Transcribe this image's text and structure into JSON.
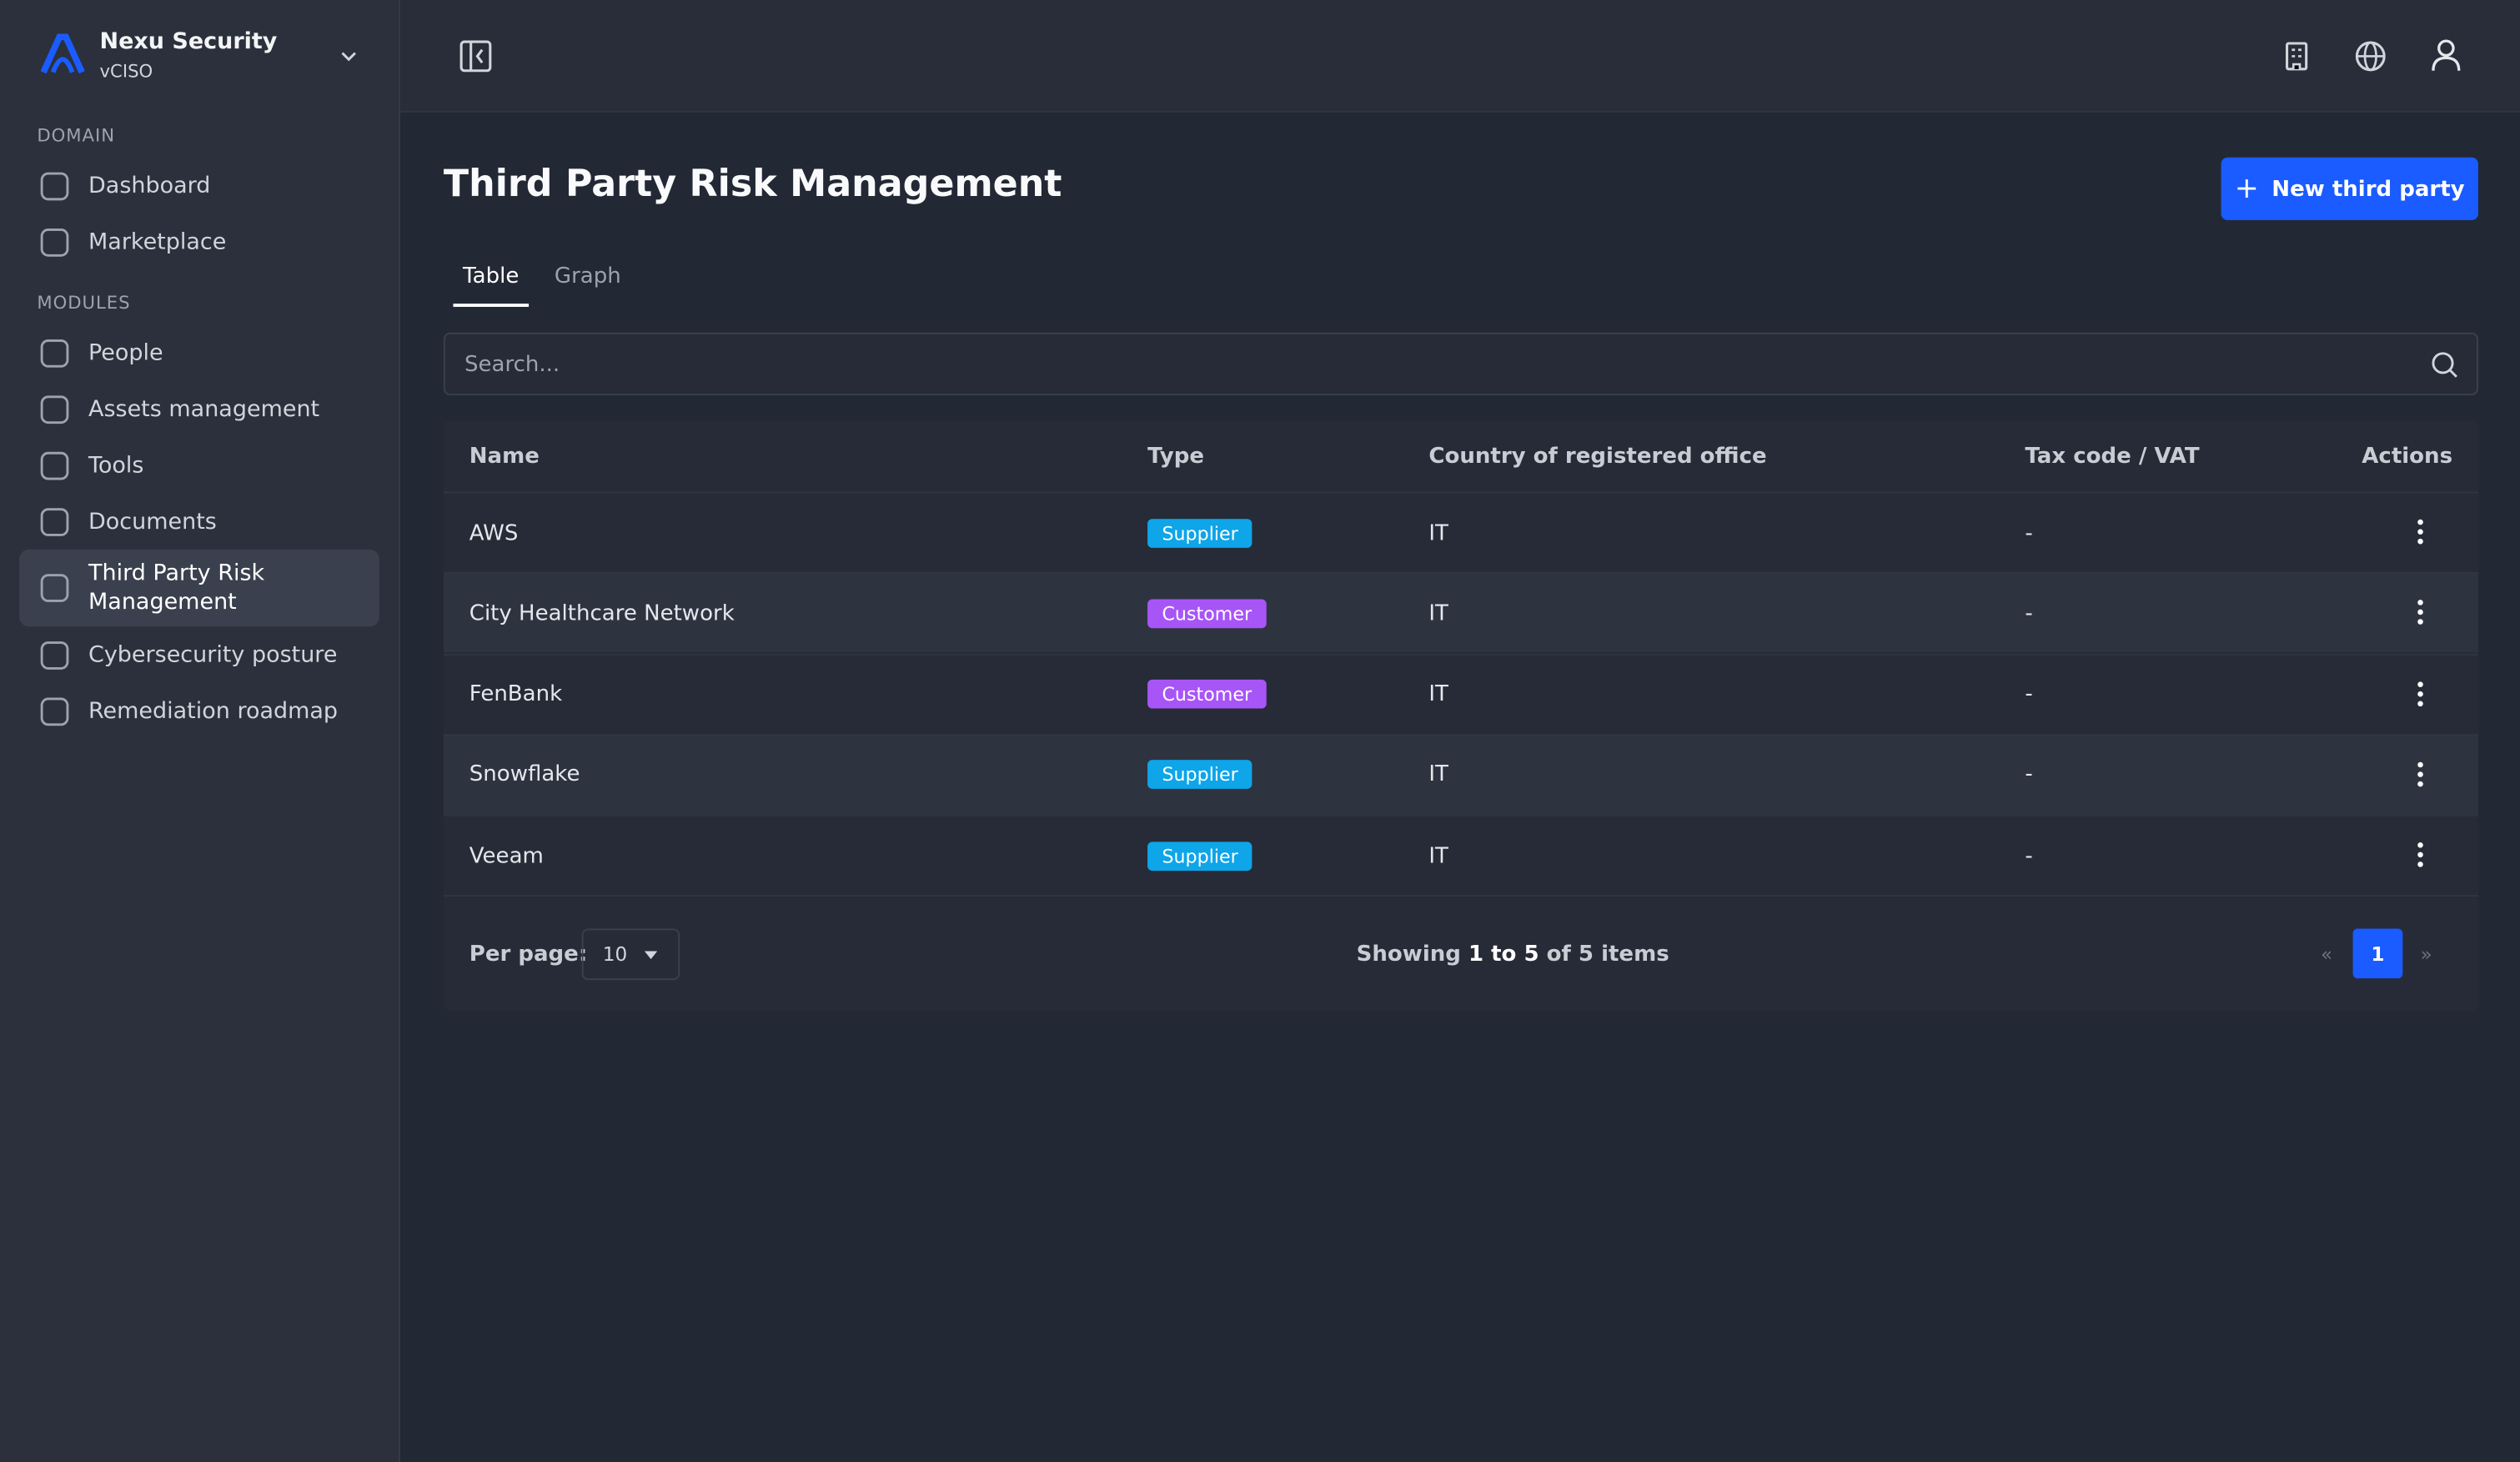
{
  "sidebar": {
    "org": "Nexu Security",
    "role": "vCISO",
    "sections": [
      {
        "label": "DOMAIN",
        "items": [
          "Dashboard",
          "Marketplace"
        ]
      },
      {
        "label": "MODULES",
        "items": [
          "People",
          "Assets management",
          "Tools",
          "Documents",
          "Third Party Risk Management",
          "Cybersecurity posture",
          "Remediation roadmap"
        ]
      }
    ]
  },
  "header": {
    "title": "Third Party Risk Management",
    "button": "New third party"
  },
  "tabs": [
    "Table",
    "Graph"
  ],
  "search": {
    "placeholder": "Search..."
  },
  "table": {
    "columns": [
      "Name",
      "Type",
      "Country of registered office",
      "Tax code / VAT",
      "Actions"
    ],
    "rows": [
      [
        "AWS",
        "Supplier",
        "IT",
        "-"
      ],
      [
        "City Healthcare Network",
        "Customer",
        "IT",
        "-"
      ],
      [
        "FenBank",
        "Customer",
        "IT",
        "-"
      ],
      [
        "Snowflake",
        "Supplier",
        "IT",
        "-"
      ],
      [
        "Veeam",
        "Supplier",
        "IT",
        "-"
      ]
    ]
  },
  "pagination": {
    "per_page_label": "Per page:",
    "per_page": "10",
    "showing": [
      "Showing",
      "1 to 5",
      "of 5 items"
    ],
    "prev": "«",
    "page": "1",
    "next": "»"
  }
}
